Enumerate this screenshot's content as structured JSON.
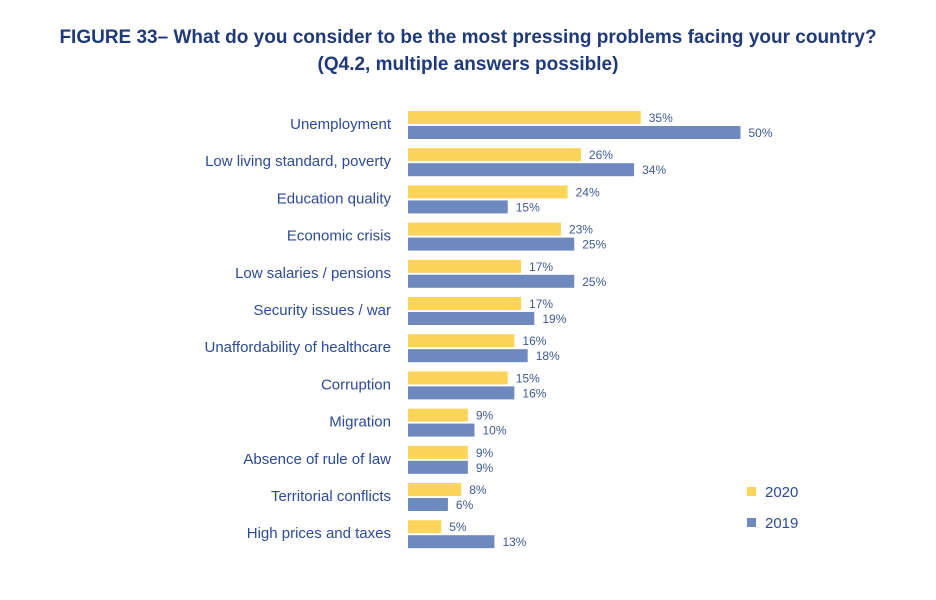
{
  "chart_data": {
    "type": "bar",
    "orientation": "horizontal",
    "title": "FIGURE 33– What do you consider to be the most pressing problems facing your country?",
    "subtitle": "(Q4.2, multiple answers possible)",
    "categories": [
      "Unemployment",
      "Low living standard, poverty",
      "Education quality",
      "Economic crisis",
      "Low salaries / pensions",
      "Security issues / war",
      "Unaffordability of healthcare",
      "Corruption",
      "Migration",
      "Absence of rule of law",
      "Territorial conflicts",
      "High prices and taxes"
    ],
    "series": [
      {
        "name": "2020",
        "color": "#fcd45a",
        "values": [
          35,
          26,
          24,
          23,
          17,
          17,
          16,
          15,
          9,
          9,
          8,
          5
        ]
      },
      {
        "name": "2019",
        "color": "#6e89bd",
        "values": [
          50,
          34,
          15,
          25,
          25,
          19,
          18,
          16,
          10,
          9,
          6,
          13
        ]
      }
    ],
    "value_suffix": "%",
    "xlim": [
      0,
      50
    ],
    "grid": false,
    "legend": "right"
  }
}
